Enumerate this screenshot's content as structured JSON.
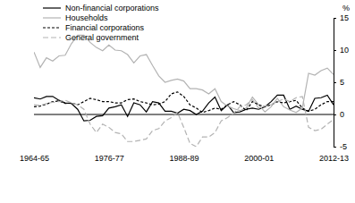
{
  "chart_data": {
    "type": "line",
    "ylabel": "%",
    "categories": [
      "1964-65",
      null,
      null,
      null,
      null,
      null,
      null,
      null,
      null,
      null,
      null,
      null,
      "1976-77",
      null,
      null,
      null,
      null,
      null,
      null,
      null,
      null,
      null,
      null,
      null,
      "1988-89",
      null,
      null,
      null,
      null,
      null,
      null,
      null,
      null,
      null,
      null,
      null,
      "2000-01",
      null,
      null,
      null,
      null,
      null,
      null,
      null,
      null,
      null,
      null,
      null,
      "2012-13"
    ],
    "series": [
      {
        "name": "Non-financial corporations",
        "color": "#000000",
        "line_style": "solid",
        "values": [
          2.6,
          2.4,
          2.8,
          2.8,
          2.2,
          1.8,
          1.7,
          0.8,
          -1.0,
          -0.9,
          -0.3,
          -0.2,
          1.0,
          1.2,
          1.5,
          -0.3,
          1.8,
          1.5,
          0.4,
          2.0,
          1.8,
          0.5,
          0.5,
          0.2,
          0.8,
          0.6,
          0.0,
          0.5,
          1.8,
          2.7,
          0.6,
          1.5,
          0.3,
          0.4,
          0.8,
          1.0,
          0.8,
          1.2,
          2.0,
          3.0,
          3.0,
          0.8,
          1.3,
          0.8,
          0.5,
          2.5,
          2.6,
          3.0,
          1.5
        ]
      },
      {
        "name": "Households",
        "color": "#b3b3b3",
        "line_style": "solid",
        "values": [
          9.7,
          7.3,
          8.8,
          8.3,
          9.1,
          9.2,
          11.0,
          12.3,
          12.3,
          11.2,
          10.4,
          9.9,
          10.8,
          10.0,
          9.9,
          9.3,
          8.0,
          9.1,
          9.3,
          7.6,
          6.0,
          5.0,
          5.3,
          5.5,
          5.2,
          4.0,
          4.0,
          3.8,
          3.2,
          4.0,
          2.0,
          1.3,
          0.9,
          0.6,
          1.0,
          2.7,
          1.5,
          0.4,
          1.2,
          2.5,
          1.2,
          0.7,
          0.3,
          1.0,
          6.4,
          6.1,
          6.8,
          7.2,
          6.2
        ]
      },
      {
        "name": "Financial corporations",
        "color": "#000000",
        "line_style": "dashed",
        "values": [
          1.2,
          1.3,
          1.6,
          2.0,
          2.1,
          1.7,
          1.8,
          1.5,
          2.0,
          2.5,
          2.3,
          2.0,
          2.0,
          1.8,
          1.8,
          2.3,
          2.4,
          2.0,
          1.8,
          1.5,
          1.6,
          2.0,
          3.2,
          3.5,
          2.8,
          1.5,
          1.0,
          0.3,
          0.6,
          1.0,
          0.8,
          1.5,
          2.0,
          1.5,
          0.6,
          2.0,
          1.5,
          1.2,
          1.5,
          2.0,
          1.8,
          2.0,
          2.2,
          1.0,
          0.5,
          0.8,
          1.5,
          2.0,
          2.0
        ]
      },
      {
        "name": "General government",
        "color": "#b3b3b3",
        "line_style": "long_dashed",
        "values": [
          1.5,
          1.4,
          1.7,
          1.9,
          2.0,
          2.2,
          1.8,
          1.5,
          0.8,
          -1.5,
          -2.8,
          -1.5,
          -2.0,
          -2.8,
          -3.0,
          -4.2,
          -4.2,
          -4.0,
          -3.8,
          -2.5,
          -2.2,
          -1.0,
          -0.5,
          0.3,
          -2.0,
          -4.5,
          -5.0,
          -3.5,
          -3.5,
          -2.8,
          -1.0,
          -0.5,
          0.2,
          1.2,
          1.5,
          2.3,
          1.0,
          1.3,
          1.5,
          2.0,
          2.4,
          2.0,
          2.6,
          2.8,
          -2.0,
          -2.5,
          -2.3,
          -1.5,
          -0.8
        ]
      }
    ],
    "ylim": [
      -5,
      15
    ],
    "yticks": [
      -5,
      0,
      5,
      10,
      15
    ],
    "legend": "upper left",
    "grid": false
  }
}
